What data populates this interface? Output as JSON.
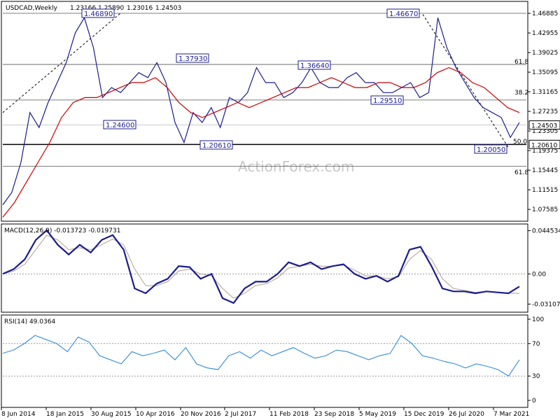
{
  "chart_data": {
    "type": "line",
    "title": "USDCAD,Weekly",
    "ohlc": [
      "1.23166",
      "1.25890",
      "1.23016",
      "1.24503"
    ],
    "watermark": "ActionForex.com",
    "x_ticks": [
      "8 Jun 2014",
      "18 Jan 2015",
      "30 Aug 2015",
      "10 Apr 2016",
      "20 Nov 2016",
      "2 Jul 2017",
      "11 Feb 2018",
      "23 Sep 2018",
      "5 May 2019",
      "15 Dec 2019",
      "26 Jul 2020",
      "7 Mar 2021"
    ],
    "price_panel": {
      "y_ticks": [
        "1.46885",
        "1.42955",
        "1.39025",
        "1.35095",
        "1.31165",
        "1.27235",
        "1.23305",
        "1.19375",
        "1.15445",
        "1.11515",
        "1.07585"
      ],
      "ylim": [
        1.055,
        1.49
      ],
      "current_price": "1.24503",
      "level_box": "1.20610",
      "annotations": [
        {
          "label": "1.46890",
          "x": "30 Aug 2015",
          "y": 1.4689
        },
        {
          "label": "1.37930",
          "x": "20 Nov 2016",
          "y": 1.3793
        },
        {
          "label": "1.24600",
          "x": "30 Aug 2015",
          "y": 1.246
        },
        {
          "label": "1.20610",
          "x": "2 Jul 2017",
          "y": 1.2061
        },
        {
          "label": "1.36640",
          "x": "23 Sep 2018",
          "y": 1.3664
        },
        {
          "label": "1.29510",
          "x": "5 May 2019",
          "y": 1.2951
        },
        {
          "label": "1.46670",
          "x": "15 Dec 2019",
          "y": 1.4667
        },
        {
          "label": "1.20050",
          "x": "7 Mar 2021",
          "y": 1.2005
        }
      ],
      "fib_labels": [
        {
          "label": "61.8",
          "y": 1.3664
        },
        {
          "label": "38.2",
          "y": 1.2951
        },
        {
          "label": "50.0",
          "y": 1.2061
        },
        {
          "label": "61.8",
          "y": 1.1625
        }
      ],
      "close_series": [
        1.085,
        1.11,
        1.17,
        1.27,
        1.24,
        1.29,
        1.33,
        1.37,
        1.43,
        1.46,
        1.4,
        1.3,
        1.32,
        1.31,
        1.33,
        1.35,
        1.34,
        1.37,
        1.33,
        1.25,
        1.21,
        1.27,
        1.25,
        1.28,
        1.24,
        1.3,
        1.29,
        1.31,
        1.36,
        1.33,
        1.33,
        1.3,
        1.31,
        1.33,
        1.36,
        1.33,
        1.32,
        1.32,
        1.34,
        1.35,
        1.33,
        1.33,
        1.31,
        1.31,
        1.32,
        1.33,
        1.3,
        1.31,
        1.46,
        1.4,
        1.36,
        1.33,
        1.3,
        1.28,
        1.27,
        1.26,
        1.22,
        1.25
      ],
      "sma_series": [
        1.06,
        1.09,
        1.13,
        1.17,
        1.21,
        1.26,
        1.29,
        1.3,
        1.3,
        1.31,
        1.32,
        1.33,
        1.33,
        1.34,
        1.32,
        1.29,
        1.27,
        1.26,
        1.27,
        1.28,
        1.29,
        1.28,
        1.29,
        1.3,
        1.31,
        1.32,
        1.32,
        1.33,
        1.34,
        1.33,
        1.32,
        1.32,
        1.33,
        1.33,
        1.32,
        1.32,
        1.33,
        1.35,
        1.36,
        1.35,
        1.33,
        1.32,
        1.3,
        1.28,
        1.27
      ]
    },
    "macd_panel": {
      "label": "MACD(12,26,9) -0.013723 -0.019731",
      "y_ticks": [
        "0.044534",
        "0.00",
        "-0.031072"
      ],
      "ylim": [
        -0.038,
        0.05
      ],
      "macd": [
        0.0,
        0.005,
        0.015,
        0.035,
        0.045,
        0.03,
        0.02,
        0.03,
        0.022,
        0.035,
        0.04,
        0.025,
        -0.015,
        -0.02,
        -0.01,
        -0.005,
        0.008,
        0.007,
        -0.005,
        0.0,
        -0.025,
        -0.03,
        -0.015,
        -0.008,
        -0.008,
        0.0,
        0.012,
        0.008,
        0.012,
        0.005,
        0.008,
        0.01,
        0.0,
        -0.005,
        -0.002,
        -0.008,
        -0.002,
        0.025,
        0.028,
        0.008,
        -0.015,
        -0.018,
        -0.018,
        -0.02,
        -0.018,
        -0.019,
        -0.02,
        -0.013
      ],
      "signal": [
        0.0,
        0.003,
        0.01,
        0.025,
        0.04,
        0.035,
        0.025,
        0.027,
        0.025,
        0.03,
        0.036,
        0.03,
        0.005,
        -0.012,
        -0.012,
        -0.008,
        0.003,
        0.005,
        0.0,
        -0.002,
        -0.015,
        -0.025,
        -0.02,
        -0.012,
        -0.01,
        -0.004,
        0.006,
        0.008,
        0.01,
        0.008,
        0.008,
        0.009,
        0.004,
        -0.002,
        -0.002,
        -0.005,
        -0.003,
        0.015,
        0.024,
        0.015,
        -0.005,
        -0.015,
        -0.017,
        -0.019,
        -0.018,
        -0.019,
        -0.02,
        -0.02
      ]
    },
    "rsi_panel": {
      "label": "RSI(14) 49.0364",
      "y_ticks": [
        "100",
        "70",
        "30",
        "0"
      ],
      "ylim": [
        0,
        100
      ],
      "values": [
        58,
        62,
        70,
        80,
        75,
        70,
        60,
        78,
        72,
        55,
        50,
        45,
        60,
        55,
        58,
        62,
        50,
        65,
        45,
        40,
        38,
        55,
        60,
        52,
        62,
        55,
        60,
        65,
        58,
        52,
        55,
        62,
        60,
        55,
        50,
        55,
        58,
        80,
        70,
        55,
        52,
        48,
        45,
        40,
        45,
        42,
        38,
        30,
        50
      ]
    }
  }
}
